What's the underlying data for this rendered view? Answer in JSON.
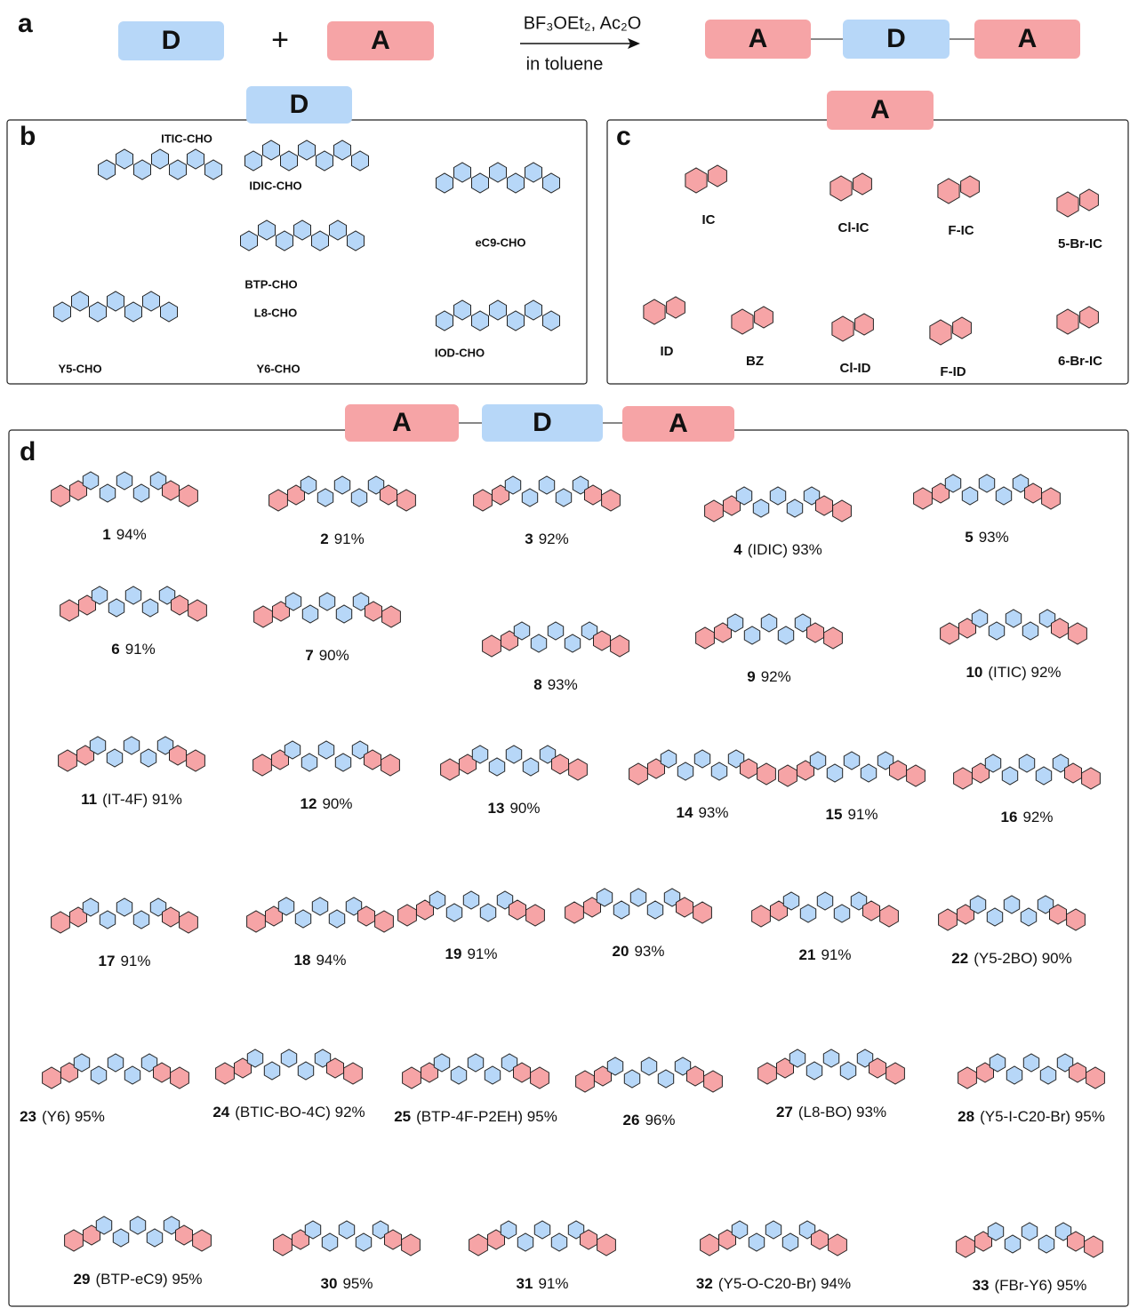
{
  "panel_a": {
    "label": "a",
    "donor": "D",
    "plus": "+",
    "acceptor": "A",
    "conditions": "BF₃OEt₂, Ac₂O",
    "solvent": "in toluene",
    "product": [
      "A",
      "D",
      "A"
    ]
  },
  "panel_b": {
    "label": "b",
    "tab": "D",
    "molecules": [
      "ITIC-CHO",
      "IDIC-CHO",
      "eC9-CHO",
      "Y5-CHO",
      "BTP-CHO",
      "L8-CHO",
      "Y6-CHO",
      "IOD-CHO"
    ]
  },
  "panel_c": {
    "label": "c",
    "tab": "A",
    "molecules": [
      "IC",
      "Cl-IC",
      "F-IC",
      "5-Br-IC",
      "ID",
      "BZ",
      "Cl-ID",
      "F-ID",
      "6-Br-IC"
    ]
  },
  "panel_d": {
    "label": "d",
    "tabs": [
      "A",
      "D",
      "A"
    ],
    "compounds": [
      {
        "number": "1",
        "rest": "94%"
      },
      {
        "number": "2",
        "rest": "91%"
      },
      {
        "number": "3",
        "rest": "92%"
      },
      {
        "number": "4",
        "rest": "(IDIC)  93%"
      },
      {
        "number": "5",
        "rest": "93%"
      },
      {
        "number": "6",
        "rest": "91%"
      },
      {
        "number": "7",
        "rest": "90%"
      },
      {
        "number": "8",
        "rest": "93%"
      },
      {
        "number": "9",
        "rest": "92%"
      },
      {
        "number": "10",
        "rest": "(ITIC)  92%"
      },
      {
        "number": "11",
        "rest": "(IT-4F)  91%"
      },
      {
        "number": "12",
        "rest": "90%"
      },
      {
        "number": "13",
        "rest": "90%"
      },
      {
        "number": "14",
        "rest": "93%"
      },
      {
        "number": "15",
        "rest": "91%"
      },
      {
        "number": "16",
        "rest": "92%"
      },
      {
        "number": "17",
        "rest": "91%"
      },
      {
        "number": "18",
        "rest": "94%"
      },
      {
        "number": "19",
        "rest": "91%"
      },
      {
        "number": "20",
        "rest": "93%"
      },
      {
        "number": "21",
        "rest": "91%"
      },
      {
        "number": "22",
        "rest": "(Y5-2BO)  90%"
      },
      {
        "number": "23",
        "rest": "(Y6)  95%"
      },
      {
        "number": "24",
        "rest": "(BTIC-BO-4C)  92%"
      },
      {
        "number": "25",
        "rest": "(BTP-4F-P2EH)  95%"
      },
      {
        "number": "26",
        "rest": "96%"
      },
      {
        "number": "27",
        "rest": "(L8-BO)  93%"
      },
      {
        "number": "28",
        "rest": "(Y5-I-C20-Br)  95%"
      },
      {
        "number": "29",
        "rest": "(BTP-eC9)  95%"
      },
      {
        "number": "30",
        "rest": "95%"
      },
      {
        "number": "31",
        "rest": "91%"
      },
      {
        "number": "32",
        "rest": "(Y5-O-C20-Br)  94%"
      },
      {
        "number": "33",
        "rest": "(FBr-Y6)  95%"
      }
    ]
  }
}
